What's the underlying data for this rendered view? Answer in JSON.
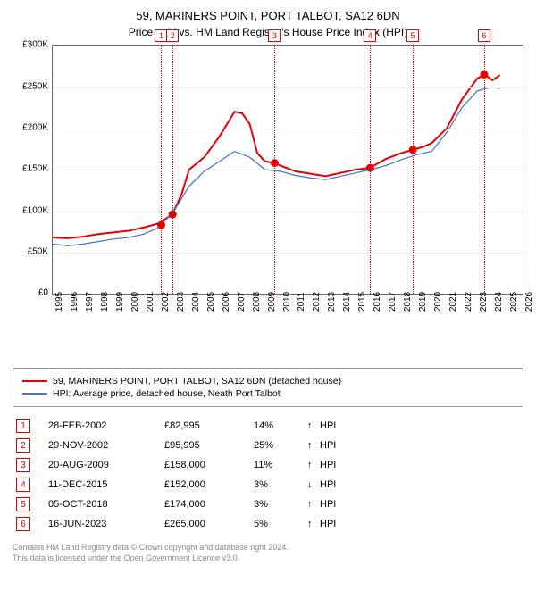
{
  "title": "59, MARINERS POINT, PORT TALBOT, SA12 6DN",
  "subtitle": "Price paid vs. HM Land Registry's House Price Index (HPI)",
  "chart": {
    "type": "line",
    "x_years": [
      1995,
      1996,
      1997,
      1998,
      1999,
      2000,
      2001,
      2002,
      2003,
      2004,
      2005,
      2006,
      2007,
      2008,
      2009,
      2010,
      2011,
      2012,
      2013,
      2014,
      2015,
      2016,
      2017,
      2018,
      2019,
      2020,
      2021,
      2022,
      2023,
      2024,
      2025,
      2026
    ],
    "xlim": [
      1995,
      2026
    ],
    "ylim": [
      0,
      300000
    ],
    "ytick_step": 50000,
    "ytick_labels": [
      "£0",
      "£50K",
      "£100K",
      "£150K",
      "£200K",
      "£250K",
      "£300K"
    ],
    "grid_color": "#eeeeee",
    "border_color": "#666666",
    "series": [
      {
        "name": "59, MARINERS POINT, PORT TALBOT, SA12 6DN (detached house)",
        "color": "#e60000",
        "width": 2,
        "points": [
          [
            1995,
            68000
          ],
          [
            1996,
            67000
          ],
          [
            1997,
            69000
          ],
          [
            1998,
            72000
          ],
          [
            1999,
            74000
          ],
          [
            2000,
            76000
          ],
          [
            2001,
            80000
          ],
          [
            2002,
            85000
          ],
          [
            2002.9,
            96000
          ],
          [
            2003.5,
            120000
          ],
          [
            2004,
            150000
          ],
          [
            2005,
            165000
          ],
          [
            2006,
            190000
          ],
          [
            2007,
            220000
          ],
          [
            2007.5,
            218000
          ],
          [
            2008,
            205000
          ],
          [
            2008.5,
            170000
          ],
          [
            2009,
            160000
          ],
          [
            2009.6,
            158000
          ],
          [
            2010,
            155000
          ],
          [
            2011,
            148000
          ],
          [
            2012,
            145000
          ],
          [
            2013,
            142000
          ],
          [
            2014,
            146000
          ],
          [
            2015,
            150000
          ],
          [
            2015.9,
            152000
          ],
          [
            2016.5,
            158000
          ],
          [
            2017,
            163000
          ],
          [
            2018,
            170000
          ],
          [
            2018.8,
            174000
          ],
          [
            2019.5,
            178000
          ],
          [
            2020,
            182000
          ],
          [
            2021,
            200000
          ],
          [
            2022,
            235000
          ],
          [
            2023,
            260000
          ],
          [
            2023.5,
            265000
          ],
          [
            2024,
            258000
          ],
          [
            2024.5,
            264000
          ]
        ]
      },
      {
        "name": "HPI: Average price, detached house, Neath Port Talbot",
        "color": "#4472c4",
        "width": 1.2,
        "points": [
          [
            1995,
            60000
          ],
          [
            1996,
            58000
          ],
          [
            1997,
            60000
          ],
          [
            1998,
            63000
          ],
          [
            1999,
            66000
          ],
          [
            2000,
            68000
          ],
          [
            2001,
            72000
          ],
          [
            2002,
            80000
          ],
          [
            2003,
            100000
          ],
          [
            2004,
            130000
          ],
          [
            2005,
            148000
          ],
          [
            2006,
            160000
          ],
          [
            2007,
            172000
          ],
          [
            2008,
            165000
          ],
          [
            2009,
            150000
          ],
          [
            2010,
            148000
          ],
          [
            2011,
            143000
          ],
          [
            2012,
            140000
          ],
          [
            2013,
            138000
          ],
          [
            2014,
            142000
          ],
          [
            2015,
            146000
          ],
          [
            2016,
            150000
          ],
          [
            2017,
            155000
          ],
          [
            2018,
            162000
          ],
          [
            2019,
            168000
          ],
          [
            2020,
            172000
          ],
          [
            2021,
            195000
          ],
          [
            2022,
            225000
          ],
          [
            2023,
            245000
          ],
          [
            2024,
            250000
          ],
          [
            2024.5,
            248000
          ]
        ]
      }
    ],
    "transaction_markers": [
      {
        "n": 1,
        "year": 2002.16,
        "price": 82995,
        "color": "#e60000"
      },
      {
        "n": 2,
        "year": 2002.91,
        "price": 95995,
        "color": "#e60000"
      },
      {
        "n": 3,
        "year": 2009.64,
        "price": 158000,
        "color": "#e60000"
      },
      {
        "n": 4,
        "year": 2015.94,
        "price": 152000,
        "color": "#e60000"
      },
      {
        "n": 5,
        "year": 2018.76,
        "price": 174000,
        "color": "#e60000"
      },
      {
        "n": 6,
        "year": 2023.46,
        "price": 265000,
        "color": "#e60000"
      }
    ]
  },
  "legend": [
    {
      "label": "59, MARINERS POINT, PORT TALBOT, SA12 6DN (detached house)",
      "color": "#e60000"
    },
    {
      "label": "HPI: Average price, detached house, Neath Port Talbot",
      "color": "#4472c4"
    }
  ],
  "transactions": [
    {
      "n": 1,
      "date": "28-FEB-2002",
      "price": "£82,995",
      "pct": "14%",
      "arrow": "↑",
      "label": "HPI",
      "color": "#e60000"
    },
    {
      "n": 2,
      "date": "29-NOV-2002",
      "price": "£95,995",
      "pct": "25%",
      "arrow": "↑",
      "label": "HPI",
      "color": "#e60000"
    },
    {
      "n": 3,
      "date": "20-AUG-2009",
      "price": "£158,000",
      "pct": "11%",
      "arrow": "↑",
      "label": "HPI",
      "color": "#e60000"
    },
    {
      "n": 4,
      "date": "11-DEC-2015",
      "price": "£152,000",
      "pct": "3%",
      "arrow": "↓",
      "label": "HPI",
      "color": "#e60000"
    },
    {
      "n": 5,
      "date": "05-OCT-2018",
      "price": "£174,000",
      "pct": "3%",
      "arrow": "↑",
      "label": "HPI",
      "color": "#e60000"
    },
    {
      "n": 6,
      "date": "16-JUN-2023",
      "price": "£265,000",
      "pct": "5%",
      "arrow": "↑",
      "label": "HPI",
      "color": "#e60000"
    }
  ],
  "footer_lines": [
    "Contains HM Land Registry data © Crown copyright and database right 2024.",
    "This data is licensed under the Open Government Licence v3.0."
  ]
}
